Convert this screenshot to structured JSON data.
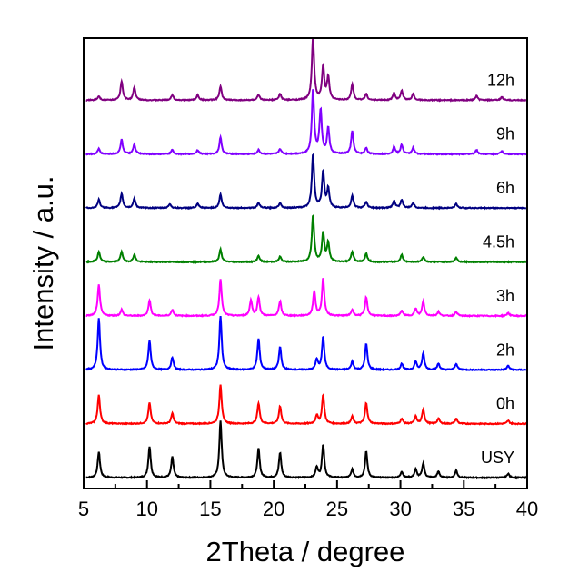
{
  "chart_data": {
    "type": "line",
    "title": "",
    "xlabel": "2Theta / degree",
    "ylabel": "Intensity / a.u.",
    "xlim": [
      5,
      40
    ],
    "x_ticks": [
      5,
      10,
      15,
      20,
      25,
      30,
      35,
      40
    ],
    "y_ticks_labeled": false,
    "grid": false,
    "legend": "none",
    "label_x": 39,
    "series": [
      {
        "name": "USY",
        "color": "#000000",
        "baseline": 1.0,
        "noise": 0.06,
        "peaks": [
          [
            6.2,
            25
          ],
          [
            10.2,
            30
          ],
          [
            12.0,
            20
          ],
          [
            15.8,
            55
          ],
          [
            18.8,
            28
          ],
          [
            20.5,
            24
          ],
          [
            23.4,
            10
          ],
          [
            23.9,
            32
          ],
          [
            26.2,
            8
          ],
          [
            27.3,
            25
          ],
          [
            30.1,
            6
          ],
          [
            31.2,
            8
          ],
          [
            31.8,
            14
          ],
          [
            33.0,
            6
          ],
          [
            34.4,
            7
          ],
          [
            38.5,
            4
          ]
        ]
      },
      {
        "name": "0h",
        "color": "#ff0000",
        "baseline": 2.0,
        "noise": 0.06,
        "peaks": [
          [
            6.2,
            28
          ],
          [
            10.2,
            20
          ],
          [
            12.0,
            10
          ],
          [
            15.8,
            38
          ],
          [
            18.8,
            20
          ],
          [
            20.5,
            17
          ],
          [
            23.4,
            8
          ],
          [
            23.9,
            28
          ],
          [
            26.2,
            7
          ],
          [
            27.3,
            20
          ],
          [
            30.1,
            5
          ],
          [
            31.2,
            7
          ],
          [
            31.8,
            14
          ],
          [
            33.0,
            5
          ],
          [
            34.4,
            5
          ],
          [
            38.5,
            3
          ]
        ]
      },
      {
        "name": "2h",
        "color": "#0000ff",
        "baseline": 3.0,
        "noise": 0.06,
        "peaks": [
          [
            6.2,
            50
          ],
          [
            10.2,
            28
          ],
          [
            12.0,
            12
          ],
          [
            15.8,
            52
          ],
          [
            18.8,
            30
          ],
          [
            20.5,
            22
          ],
          [
            23.4,
            10
          ],
          [
            23.9,
            32
          ],
          [
            26.2,
            8
          ],
          [
            27.3,
            25
          ],
          [
            30.1,
            6
          ],
          [
            31.2,
            8
          ],
          [
            31.8,
            16
          ],
          [
            33.0,
            6
          ],
          [
            34.4,
            6
          ],
          [
            38.5,
            4
          ]
        ]
      },
      {
        "name": "3h",
        "color": "#ff00ff",
        "baseline": 4.0,
        "noise": 0.06,
        "peaks": [
          [
            6.2,
            30
          ],
          [
            8.0,
            6
          ],
          [
            10.2,
            15
          ],
          [
            12.0,
            6
          ],
          [
            15.8,
            35
          ],
          [
            18.2,
            15
          ],
          [
            18.8,
            18
          ],
          [
            20.5,
            14
          ],
          [
            23.2,
            24
          ],
          [
            23.9,
            36
          ],
          [
            26.2,
            6
          ],
          [
            27.3,
            18
          ],
          [
            30.1,
            5
          ],
          [
            31.2,
            7
          ],
          [
            31.8,
            14
          ],
          [
            33.0,
            4
          ],
          [
            34.4,
            4
          ],
          [
            38.5,
            3
          ]
        ]
      },
      {
        "name": "4.5h",
        "color": "#008000",
        "baseline": 5.0,
        "noise": 0.06,
        "peaks": [
          [
            6.2,
            10
          ],
          [
            8.0,
            10
          ],
          [
            9.0,
            7
          ],
          [
            15.8,
            12
          ],
          [
            18.8,
            6
          ],
          [
            20.5,
            5
          ],
          [
            23.1,
            45
          ],
          [
            23.9,
            28
          ],
          [
            24.3,
            18
          ],
          [
            26.2,
            10
          ],
          [
            27.3,
            8
          ],
          [
            30.1,
            7
          ],
          [
            31.8,
            5
          ],
          [
            34.4,
            4
          ]
        ]
      },
      {
        "name": "6h",
        "color": "#000080",
        "baseline": 6.0,
        "noise": 0.06,
        "peaks": [
          [
            6.2,
            8
          ],
          [
            8.0,
            14
          ],
          [
            9.0,
            9
          ],
          [
            11.8,
            4
          ],
          [
            14.0,
            4
          ],
          [
            15.8,
            13
          ],
          [
            18.8,
            5
          ],
          [
            20.5,
            5
          ],
          [
            23.1,
            52
          ],
          [
            23.9,
            35
          ],
          [
            24.3,
            18
          ],
          [
            26.2,
            12
          ],
          [
            27.3,
            6
          ],
          [
            29.5,
            7
          ],
          [
            30.1,
            8
          ],
          [
            31.0,
            5
          ],
          [
            34.4,
            4
          ]
        ]
      },
      {
        "name": "9h",
        "color": "#8000ff",
        "baseline": 7.0,
        "noise": 0.06,
        "peaks": [
          [
            6.2,
            5
          ],
          [
            8.0,
            14
          ],
          [
            9.0,
            9
          ],
          [
            12.0,
            4
          ],
          [
            14.0,
            4
          ],
          [
            15.8,
            16
          ],
          [
            18.8,
            4
          ],
          [
            20.5,
            5
          ],
          [
            23.1,
            62
          ],
          [
            23.7,
            42
          ],
          [
            24.3,
            25
          ],
          [
            26.2,
            22
          ],
          [
            27.3,
            6
          ],
          [
            29.5,
            7
          ],
          [
            30.1,
            9
          ],
          [
            31.0,
            6
          ],
          [
            36.0,
            4
          ],
          [
            38.0,
            3
          ]
        ]
      },
      {
        "name": "12h",
        "color": "#800080",
        "baseline": 8.0,
        "noise": 0.06,
        "peaks": [
          [
            6.2,
            4
          ],
          [
            8.0,
            18
          ],
          [
            9.0,
            12
          ],
          [
            12.0,
            5
          ],
          [
            14.0,
            5
          ],
          [
            15.8,
            13
          ],
          [
            18.8,
            5
          ],
          [
            20.5,
            6
          ],
          [
            23.1,
            60
          ],
          [
            23.9,
            32
          ],
          [
            24.3,
            22
          ],
          [
            26.2,
            15
          ],
          [
            27.3,
            6
          ],
          [
            29.5,
            7
          ],
          [
            30.1,
            9
          ],
          [
            31.0,
            6
          ],
          [
            36.0,
            4
          ],
          [
            38.0,
            3
          ]
        ]
      }
    ]
  }
}
